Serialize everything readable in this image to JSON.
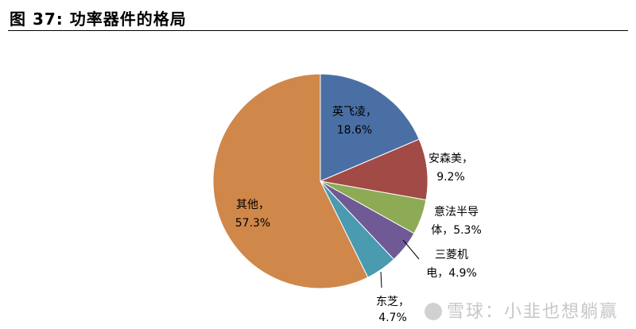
{
  "figure": {
    "title": "图 37:  功率器件的格局"
  },
  "chart_data": {
    "type": "pie",
    "title": "",
    "slices": [
      {
        "name": "英飞凌",
        "value": 18.6,
        "label": "18.6%",
        "color": "#4a6fa5"
      },
      {
        "name": "安森美",
        "value": 9.2,
        "label": "9.2%",
        "color": "#a24a45"
      },
      {
        "name": "意法半导体",
        "value": 5.3,
        "label": "5.3%",
        "color": "#8cab54"
      },
      {
        "name": "三菱机电",
        "value": 4.9,
        "label": "4.9%",
        "color": "#6f5a95"
      },
      {
        "name": "东芝",
        "value": 4.7,
        "label": "4.7%",
        "color": "#4a9ab0"
      },
      {
        "name": "其他",
        "value": 57.3,
        "label": "57.3%",
        "color": "#d0874a"
      }
    ],
    "start_angle": "12 o'clock",
    "direction": "clockwise",
    "legend": "none"
  },
  "watermark": {
    "text": "雪球：小韭也想躺赢"
  }
}
